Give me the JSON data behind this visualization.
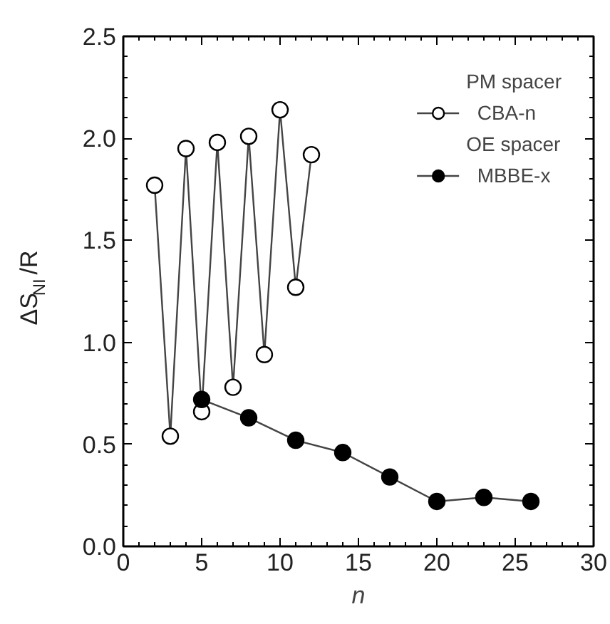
{
  "chart_data": {
    "type": "line",
    "xlabel": "n",
    "ylabel": "ΔS$_{NI}$/R",
    "annotations": [
      "PM spacer",
      "OE spacer"
    ],
    "xlim": [
      0,
      30
    ],
    "xticks": [
      0,
      5,
      10,
      15,
      20,
      25,
      30
    ],
    "ylim": [
      0,
      2.5
    ],
    "yticks": [
      {
        "value": 0,
        "label": "0.0"
      },
      {
        "value": 0.5,
        "label": "0.5"
      },
      {
        "value": 1,
        "label": "1.0"
      },
      {
        "value": 1.5,
        "label": "1.5"
      },
      {
        "value": 2,
        "label": "2.0"
      },
      {
        "value": 2.5,
        "label": "2.5"
      }
    ],
    "grid": false,
    "legend": "top right",
    "marker": "circle",
    "line_style": "solid",
    "series": [
      {
        "name": "CBA-n",
        "color": "#ffffff",
        "x": [
          2,
          3,
          4,
          5,
          6,
          7,
          8,
          9,
          10,
          11,
          12
        ],
        "values": [
          1.77,
          0.54,
          1.95,
          0.66,
          1.98,
          0.78,
          2.01,
          0.94,
          2.14,
          1.27,
          1.92
        ]
      },
      {
        "name": "MBBE-x",
        "color": "#000000",
        "x": [
          5,
          8,
          11,
          14,
          17,
          20,
          23,
          26
        ],
        "values": [
          0.72,
          0.63,
          0.52,
          0.46,
          0.34,
          0.22,
          0.24,
          0.22
        ]
      }
    ]
  }
}
